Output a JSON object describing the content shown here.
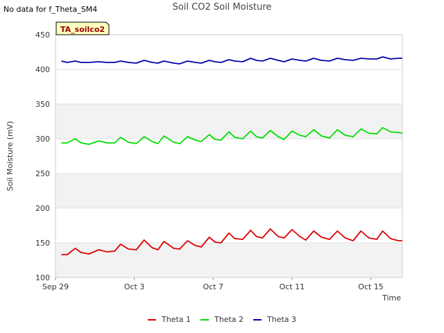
{
  "no_data_note": "No data for f_Theta_SM4",
  "chart_data": {
    "type": "line",
    "title": "Soil CO2 Soil Moisture",
    "xlabel": "Time",
    "ylabel": "Soil Moisture (mV)",
    "ylim": [
      100,
      450
    ],
    "yticks": [
      100,
      150,
      200,
      250,
      300,
      350,
      400,
      450
    ],
    "xlim": [
      0,
      17.6
    ],
    "xticks": [
      {
        "value": 0,
        "label": "Sep 29"
      },
      {
        "value": 4,
        "label": "Oct 3"
      },
      {
        "value": 8,
        "label": "Oct 7"
      },
      {
        "value": 12,
        "label": "Oct 11"
      },
      {
        "value": 16,
        "label": "Oct 15"
      }
    ],
    "grid": true,
    "site_label": "TA_soilco2",
    "legend_position": "bottom-center",
    "x": [
      0.3,
      0.6,
      1.0,
      1.3,
      1.7,
      2.2,
      2.6,
      3.0,
      3.3,
      3.7,
      4.1,
      4.5,
      4.9,
      5.2,
      5.5,
      6.0,
      6.3,
      6.7,
      7.1,
      7.4,
      7.8,
      8.1,
      8.4,
      8.8,
      9.1,
      9.5,
      9.9,
      10.2,
      10.5,
      10.9,
      11.3,
      11.6,
      12.0,
      12.4,
      12.7,
      13.1,
      13.5,
      13.9,
      14.3,
      14.7,
      15.1,
      15.5,
      15.9,
      16.3,
      16.6,
      17.0,
      17.4,
      17.6
    ],
    "series": [
      {
        "name": "Theta 1",
        "color": "#dd0000",
        "values": [
          133,
          133,
          142,
          136,
          134,
          140,
          137,
          138,
          148,
          141,
          140,
          154,
          143,
          140,
          152,
          142,
          141,
          153,
          146,
          144,
          158,
          151,
          150,
          164,
          156,
          155,
          168,
          159,
          157,
          170,
          159,
          157,
          169,
          159,
          154,
          167,
          158,
          155,
          167,
          157,
          153,
          167,
          157,
          155,
          167,
          156,
          153,
          153
        ]
      },
      {
        "name": "Theta 2",
        "color": "#00dd00",
        "values": [
          294,
          294,
          300,
          294,
          292,
          297,
          294,
          294,
          302,
          295,
          293,
          303,
          296,
          293,
          304,
          295,
          293,
          303,
          298,
          296,
          306,
          299,
          298,
          310,
          302,
          300,
          311,
          303,
          301,
          312,
          303,
          299,
          311,
          305,
          303,
          313,
          304,
          301,
          313,
          305,
          303,
          314,
          308,
          307,
          316,
          310,
          309,
          308
        ]
      },
      {
        "name": "Theta 3",
        "color": "#0000aa",
        "values": [
          412,
          410,
          412,
          410,
          410,
          411,
          410,
          410,
          412,
          410,
          409,
          413,
          410,
          409,
          412,
          409,
          408,
          412,
          410,
          409,
          413,
          411,
          410,
          414,
          412,
          411,
          416,
          413,
          412,
          416,
          413,
          411,
          415,
          413,
          412,
          416,
          413,
          412,
          416,
          414,
          413,
          416,
          415,
          415,
          418,
          415,
          416,
          416
        ]
      }
    ]
  }
}
